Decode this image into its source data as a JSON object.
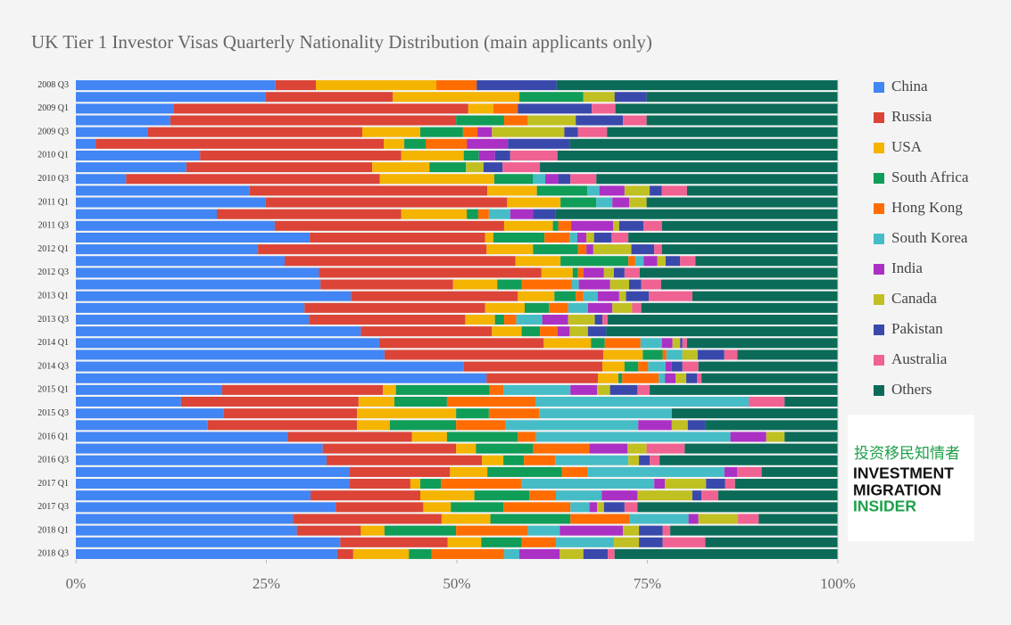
{
  "chart_data": {
    "type": "stacked-barh",
    "title": "UK Tier 1 Investor Visas Quarterly Nationality Distribution (main applicants only)",
    "categories": [
      "2008 Q3",
      null,
      "2009 Q1",
      null,
      "2009 Q3",
      null,
      "2010 Q1",
      null,
      "2010 Q3",
      null,
      "2011 Q1",
      null,
      "2011 Q3",
      null,
      "2012 Q1",
      null,
      "2012 Q3",
      null,
      "2013 Q1",
      null,
      "2013 Q3",
      null,
      "2014 Q1",
      null,
      "2014 Q3",
      null,
      "2015 Q1",
      null,
      "2015 Q3",
      null,
      "2016 Q1",
      null,
      "2016 Q3",
      null,
      "2017 Q1",
      null,
      "2017 Q3",
      null,
      "2018 Q1",
      null,
      "2018 Q3"
    ],
    "series": [
      {
        "name": "China",
        "color": "#4285f4",
        "values": [
          26.2,
          24.9,
          12.8,
          12.4,
          9.4,
          2.6,
          16.3,
          14.5,
          6.6,
          22.8,
          24.9,
          18.5,
          26.1,
          30.7,
          23.9,
          27.4,
          31.9,
          32.1,
          36.1,
          30.0,
          30.6,
          37.4,
          39.8,
          40.5,
          50.9,
          53.9,
          19.2,
          13.8,
          19.4,
          17.3,
          27.8,
          32.4,
          32.9,
          35.9,
          35.9,
          30.8,
          34.1,
          28.5,
          29.0,
          34.7,
          34.3
        ]
      },
      {
        "name": "Russia",
        "color": "#db4437",
        "values": [
          5.3,
          16.7,
          38.7,
          37.5,
          28.2,
          37.8,
          26.4,
          24.4,
          33.3,
          31.2,
          31.7,
          24.2,
          30.1,
          23.0,
          30.0,
          30.3,
          29.2,
          17.4,
          21.9,
          23.7,
          20.5,
          17.2,
          21.6,
          28.7,
          18.2,
          14.6,
          21.1,
          23.3,
          17.5,
          19.6,
          16.3,
          17.5,
          20.4,
          13.2,
          8.0,
          14.4,
          11.5,
          19.5,
          8.4,
          14.1,
          2.1
        ]
      },
      {
        "name": "USA",
        "color": "#f4b400",
        "values": [
          15.8,
          16.6,
          3.3,
          0,
          7.6,
          2.7,
          8.2,
          7.5,
          15.0,
          6.5,
          7.0,
          8.6,
          6.4,
          1.1,
          6.1,
          5.9,
          4.1,
          5.8,
          4.8,
          5.2,
          3.9,
          3.9,
          6.2,
          5.2,
          2.9,
          2.7,
          1.7,
          4.7,
          13.0,
          4.3,
          4.6,
          2.6,
          2.8,
          4.9,
          1.3,
          7.1,
          3.6,
          6.4,
          3.1,
          4.4,
          7.3
        ]
      },
      {
        "name": "South Africa",
        "color": "#0f9d58",
        "values": [
          0,
          8.4,
          0,
          6.3,
          5.6,
          2.8,
          2.0,
          4.8,
          5.1,
          6.6,
          4.7,
          1.5,
          0.7,
          6.7,
          5.9,
          8.9,
          0.7,
          3.2,
          2.8,
          3.2,
          1.2,
          2.4,
          1.8,
          2.6,
          1.8,
          0.5,
          12.3,
          6.9,
          4.3,
          8.7,
          9.3,
          7.5,
          2.7,
          9.8,
          2.7,
          7.2,
          6.9,
          10.5,
          9.4,
          5.3,
          3.0
        ]
      },
      {
        "name": "Hong Kong",
        "color": "#ff6d00",
        "values": [
          5.3,
          0,
          3.2,
          3.1,
          1.9,
          5.4,
          0,
          0,
          0,
          0,
          0,
          1.4,
          1.7,
          3.3,
          1.1,
          0.9,
          0.7,
          6.6,
          1.0,
          2.5,
          1.6,
          2.3,
          4.7,
          0.5,
          1.3,
          4.8,
          1.8,
          11.6,
          6.6,
          6.5,
          2.4,
          7.4,
          4.1,
          3.3,
          10.6,
          3.5,
          8.8,
          7.8,
          9.4,
          4.5,
          9.5
        ]
      },
      {
        "name": "South Korea",
        "color": "#46bdc6",
        "values": [
          0,
          0,
          0,
          0,
          0,
          0,
          0,
          0,
          1.6,
          1.6,
          2.1,
          2.8,
          0,
          1.0,
          0,
          1.1,
          0,
          0.9,
          1.9,
          2.6,
          3.4,
          0,
          2.8,
          2.1,
          2.3,
          0.8,
          8.8,
          28.0,
          17.4,
          17.4,
          25.5,
          0,
          9.6,
          18.0,
          17.4,
          6.0,
          2.5,
          7.7,
          4.2,
          7.6,
          2.0
        ]
      },
      {
        "name": "India",
        "color": "#ab30c4",
        "values": [
          0,
          0,
          0,
          0,
          1.9,
          5.4,
          2.1,
          0,
          1.7,
          3.3,
          2.2,
          3.0,
          5.5,
          1.2,
          0.9,
          1.8,
          2.7,
          4.1,
          2.8,
          3.2,
          3.4,
          1.6,
          1.4,
          0,
          0.8,
          1.4,
          3.5,
          0,
          0,
          4.4,
          4.7,
          5.0,
          0,
          1.7,
          1.4,
          4.7,
          1.0,
          1.3,
          8.3,
          0,
          5.3
        ]
      },
      {
        "name": "Canada",
        "color": "#c0c022",
        "values": [
          0,
          4.1,
          0,
          6.3,
          9.5,
          0,
          0,
          2.3,
          0,
          3.3,
          2.3,
          0,
          0.8,
          1.0,
          5.0,
          1.1,
          1.3,
          2.5,
          0.9,
          2.6,
          3.5,
          2.4,
          1.0,
          2.0,
          0,
          1.4,
          1.7,
          0,
          0,
          2.1,
          2.4,
          2.5,
          1.4,
          0,
          5.4,
          7.2,
          0.9,
          5.2,
          2.1,
          3.3,
          3.1
        ]
      },
      {
        "name": "Pakistan",
        "color": "#3949ab",
        "values": [
          10.5,
          4.2,
          9.7,
          6.2,
          1.8,
          8.1,
          2.0,
          2.5,
          1.6,
          1.6,
          0,
          2.9,
          3.2,
          2.3,
          3.0,
          1.9,
          1.4,
          1.6,
          3.0,
          0,
          1.0,
          2.4,
          0.3,
          3.5,
          1.4,
          1.4,
          3.6,
          0,
          0,
          2.3,
          0,
          0,
          1.4,
          0,
          2.5,
          1.2,
          2.7,
          0,
          3.1,
          3.1,
          3.2
        ]
      },
      {
        "name": "Australia",
        "color": "#f06292",
        "values": [
          0,
          0,
          3.1,
          3.1,
          3.8,
          0,
          6.2,
          4.9,
          3.4,
          3.3,
          0,
          0,
          2.4,
          2.2,
          1.0,
          2.0,
          2.0,
          2.6,
          5.7,
          1.2,
          0.7,
          0,
          0.6,
          1.7,
          2.1,
          0.6,
          1.6,
          4.7,
          0,
          0,
          0,
          5.0,
          1.3,
          3.2,
          1.3,
          2.2,
          1.7,
          2.7,
          1.0,
          5.6,
          0.9
        ]
      },
      {
        "name": "Others",
        "color": "#0b6b58",
        "values": [
          36.9,
          25.1,
          29.2,
          25.1,
          30.3,
          35.2,
          36.8,
          39.1,
          31.7,
          19.8,
          25.1,
          37.1,
          23.1,
          27.5,
          23.1,
          18.7,
          26.0,
          23.2,
          19.1,
          25.8,
          30.2,
          30.4,
          19.8,
          13.2,
          18.3,
          17.9,
          24.7,
          7.0,
          21.8,
          17.4,
          7.0,
          20.1,
          23.4,
          10.0,
          13.5,
          15.7,
          26.3,
          10.4,
          22.0,
          17.4,
          29.3
        ]
      }
    ],
    "xlim": [
      0,
      100
    ],
    "xticks": [
      {
        "value": 0,
        "label": "0%"
      },
      {
        "value": 25,
        "label": "25%"
      },
      {
        "value": 50,
        "label": "50%"
      },
      {
        "value": 75,
        "label": "75%"
      },
      {
        "value": 100,
        "label": "100%"
      }
    ],
    "legend": "right"
  },
  "logo": {
    "chinese": "投资移民知情者",
    "lines": [
      "INVESTMENT",
      "MIGRATION",
      "INSIDER"
    ]
  }
}
